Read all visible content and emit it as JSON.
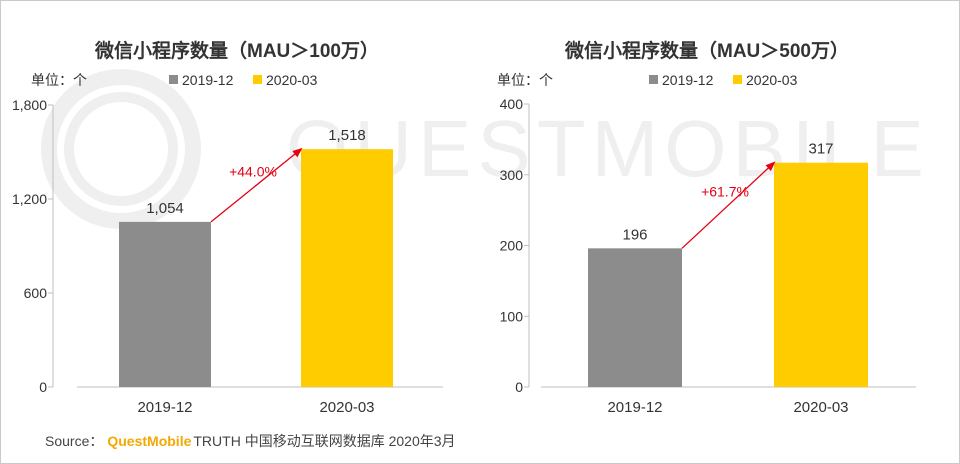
{
  "watermark": "QUESTMOBILE",
  "colors": {
    "series1": "#8c8c8c",
    "series2": "#ffcc00",
    "arrow": "#e60012",
    "axis": "#bfbfbf",
    "text": "#333333",
    "watermark": "#efefef",
    "brand": "#f5a800"
  },
  "source": {
    "label": "Source：",
    "brand": "QuestMobile",
    "rest": "TRUTH 中国移动互联网数据库 2020年3月"
  },
  "chart_data": [
    {
      "type": "bar",
      "title": "微信小程序数量（MAU＞100万）",
      "unit_label": "单位：个",
      "categories": [
        "2019-12",
        "2020-03"
      ],
      "series": [
        {
          "name": "2019-12",
          "values": [
            1054,
            null
          ]
        },
        {
          "name": "2020-03",
          "values": [
            null,
            1518
          ]
        }
      ],
      "values": [
        1054,
        1518
      ],
      "value_labels": [
        "1,054",
        "1,518"
      ],
      "legend": [
        "2019-12",
        "2020-03"
      ],
      "legend_position": "top",
      "ylim": [
        0,
        1800
      ],
      "yticks": [
        0,
        600,
        1200,
        1800
      ],
      "ytick_labels": [
        "0",
        "600",
        "1,200",
        "1,800"
      ],
      "growth_label": "+44.0%",
      "xlabel": "",
      "ylabel": ""
    },
    {
      "type": "bar",
      "title": "微信小程序数量（MAU＞500万）",
      "unit_label": "单位：个",
      "categories": [
        "2019-12",
        "2020-03"
      ],
      "series": [
        {
          "name": "2019-12",
          "values": [
            196,
            null
          ]
        },
        {
          "name": "2020-03",
          "values": [
            null,
            317
          ]
        }
      ],
      "values": [
        196,
        317
      ],
      "value_labels": [
        "196",
        "317"
      ],
      "legend": [
        "2019-12",
        "2020-03"
      ],
      "legend_position": "top",
      "ylim": [
        0,
        400
      ],
      "yticks": [
        0,
        100,
        200,
        300,
        400
      ],
      "ytick_labels": [
        "0",
        "100",
        "200",
        "300",
        "400"
      ],
      "growth_label": "+61.7%",
      "xlabel": "",
      "ylabel": ""
    }
  ]
}
